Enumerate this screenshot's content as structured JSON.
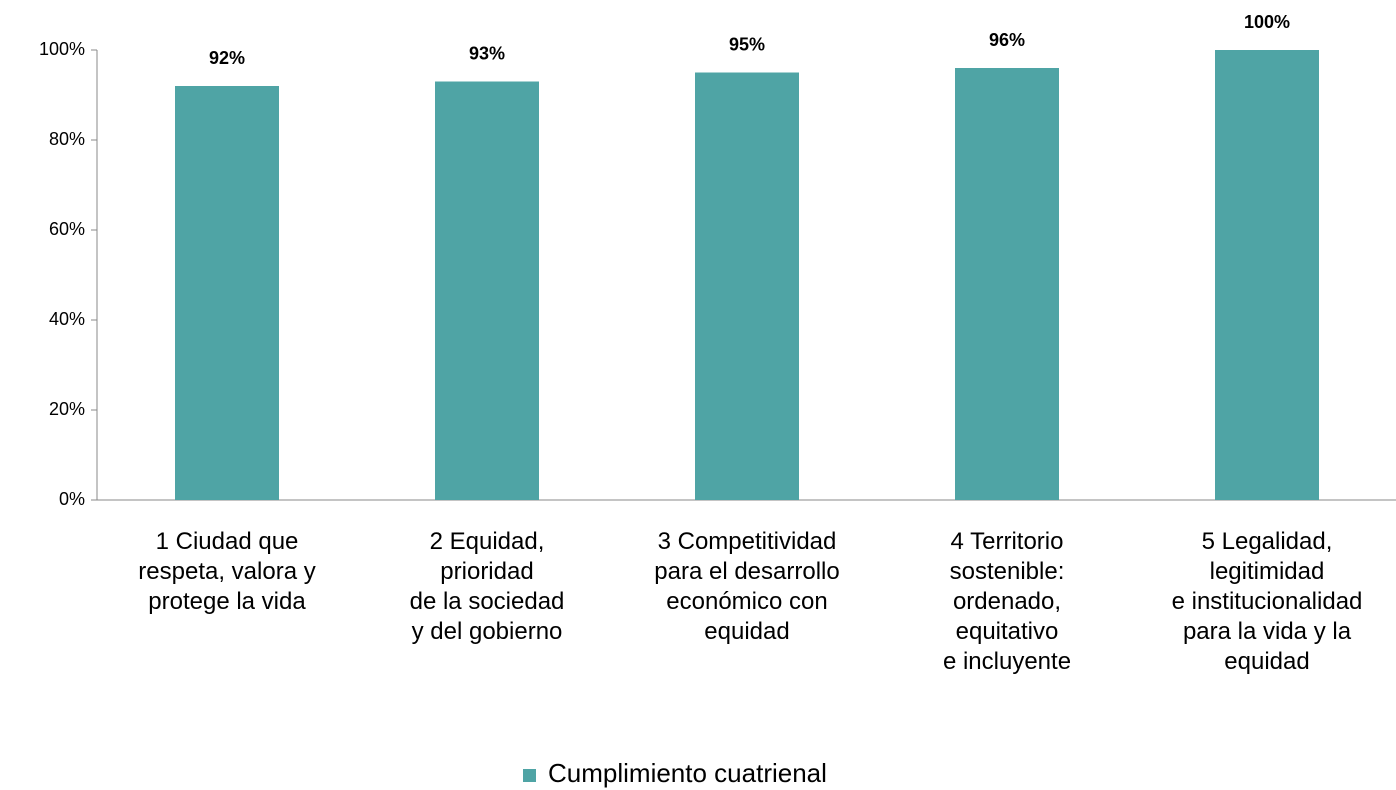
{
  "chart_data": {
    "type": "bar",
    "categories": [
      "1 Ciudad que\nrespeta, valora y\nprotege la vida",
      "2 Equidad,\nprioridad\nde la sociedad\ny del gobierno",
      "3 Competitividad\npara el desarrollo\neconómico con\nequidad",
      "4 Territorio\nsostenible:\nordenado,\nequitativo\ne incluyente",
      "5 Legalidad,\nlegitimidad\ne institucionalidad\npara la vida y la\nequidad"
    ],
    "series": [
      {
        "name": "Cumplimiento cuatrienal",
        "color": "#4fa4a5",
        "values": [
          92,
          93,
          95,
          96,
          100
        ],
        "value_labels": [
          "92%",
          "93%",
          "95%",
          "96%",
          "100%"
        ]
      }
    ],
    "ylim": [
      0,
      100
    ],
    "yticks": [
      {
        "value": 0,
        "label": "0%"
      },
      {
        "value": 20,
        "label": "20%"
      },
      {
        "value": 40,
        "label": "40%"
      },
      {
        "value": 60,
        "label": "60%"
      },
      {
        "value": 80,
        "label": "80%"
      },
      {
        "value": 100,
        "label": "100%"
      }
    ],
    "legend": "bottom"
  }
}
